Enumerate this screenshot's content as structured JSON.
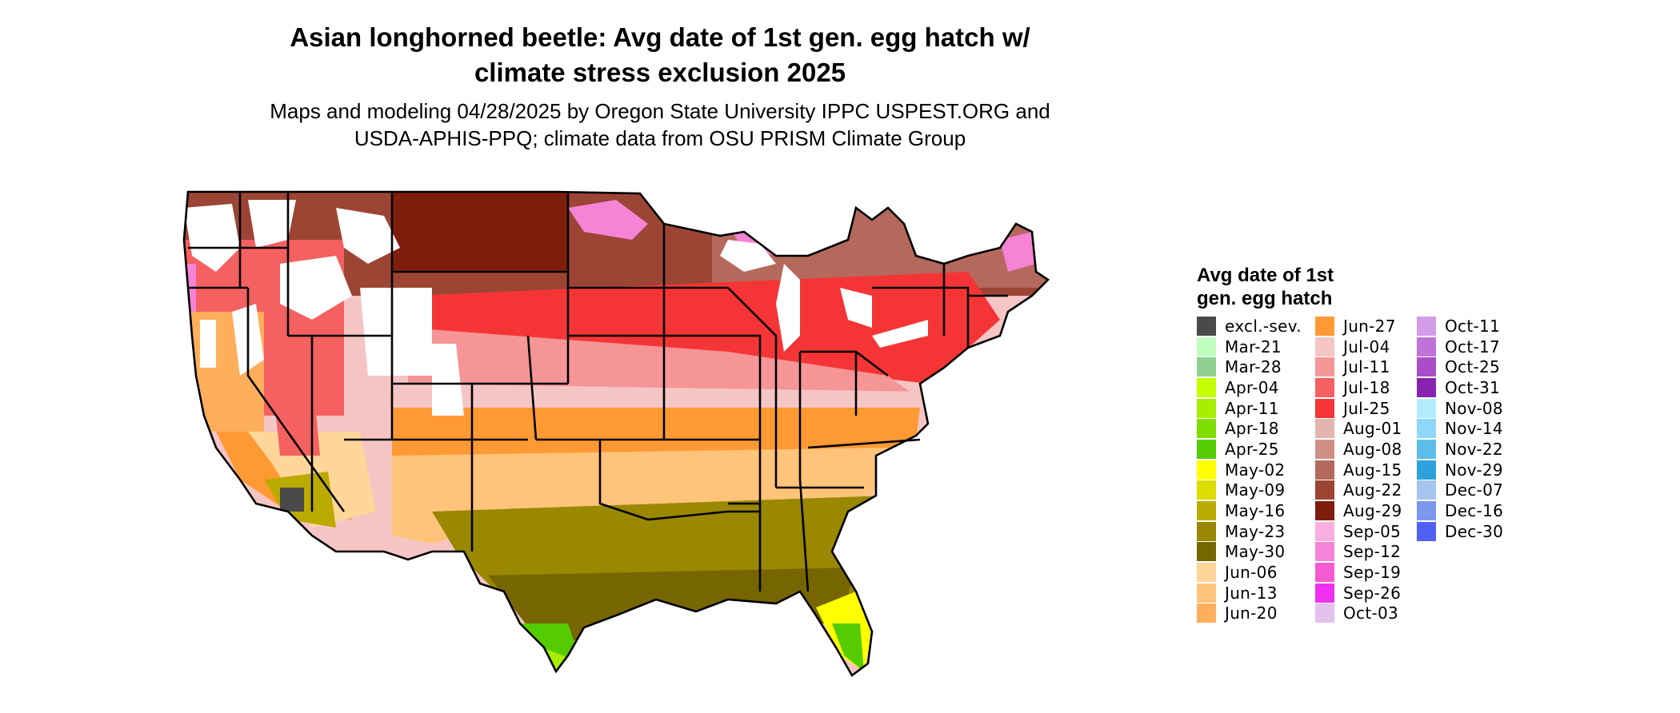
{
  "title_line1": "Asian longhorned beetle: Avg date of 1st gen. egg hatch w/",
  "title_line2": "climate stress exclusion 2025",
  "subtitle_line1": "Maps and modeling 04/28/2025 by Oregon State University IPPC USPEST.ORG and",
  "subtitle_line2": "USDA-APHIS-PPQ; climate data from OSU PRISM Climate Group",
  "legend": {
    "title_line1": "Avg date of 1st",
    "title_line2": "gen. egg hatch",
    "columns": [
      [
        {
          "label": "excl.-sev.",
          "color": "#4a4a4a"
        },
        {
          "label": "Mar-21",
          "color": "#c1ffc1"
        },
        {
          "label": "Mar-28",
          "color": "#8fcf8f"
        },
        {
          "label": "Apr-04",
          "color": "#c6ff00"
        },
        {
          "label": "Apr-11",
          "color": "#a6ee00"
        },
        {
          "label": "Apr-18",
          "color": "#7fdd00"
        },
        {
          "label": "Apr-25",
          "color": "#55cc00"
        },
        {
          "label": "May-02",
          "color": "#ffff00"
        },
        {
          "label": "May-09",
          "color": "#dddd00"
        },
        {
          "label": "May-16",
          "color": "#bbaa00"
        },
        {
          "label": "May-23",
          "color": "#998800"
        },
        {
          "label": "May-30",
          "color": "#776600"
        },
        {
          "label": "Jun-06",
          "color": "#ffd69a"
        },
        {
          "label": "Jun-13",
          "color": "#ffc47a"
        },
        {
          "label": "Jun-20",
          "color": "#ffae5c"
        }
      ],
      [
        {
          "label": "Jun-27",
          "color": "#ff9933"
        },
        {
          "label": "Jul-04",
          "color": "#f5c5c5"
        },
        {
          "label": "Jul-11",
          "color": "#f59595"
        },
        {
          "label": "Jul-18",
          "color": "#f56060"
        },
        {
          "label": "Jul-25",
          "color": "#f53535"
        },
        {
          "label": "Aug-01",
          "color": "#e3b5ae"
        },
        {
          "label": "Aug-08",
          "color": "#cf8f85"
        },
        {
          "label": "Aug-15",
          "color": "#b5695c"
        },
        {
          "label": "Aug-22",
          "color": "#9c4535"
        },
        {
          "label": "Aug-29",
          "color": "#7f1d0d"
        },
        {
          "label": "Sep-05",
          "color": "#f9aee0"
        },
        {
          "label": "Sep-12",
          "color": "#f583d6"
        },
        {
          "label": "Sep-19",
          "color": "#f55ad0"
        },
        {
          "label": "Sep-26",
          "color": "#f030f0"
        },
        {
          "label": "Oct-03",
          "color": "#e3c2ee"
        }
      ],
      [
        {
          "label": "Oct-11",
          "color": "#d49ce8"
        },
        {
          "label": "Oct-17",
          "color": "#bf73d8"
        },
        {
          "label": "Oct-25",
          "color": "#a94ec8"
        },
        {
          "label": "Oct-31",
          "color": "#8a22b0"
        },
        {
          "label": "Nov-08",
          "color": "#b3ecff"
        },
        {
          "label": "Nov-14",
          "color": "#8dd8f8"
        },
        {
          "label": "Nov-22",
          "color": "#5cbcec"
        },
        {
          "label": "Nov-29",
          "color": "#2ea1dc"
        },
        {
          "label": "Dec-07",
          "color": "#a5c4ee"
        },
        {
          "label": "Dec-16",
          "color": "#7b97ee"
        },
        {
          "label": "Dec-30",
          "color": "#5060f5"
        }
      ]
    ]
  }
}
